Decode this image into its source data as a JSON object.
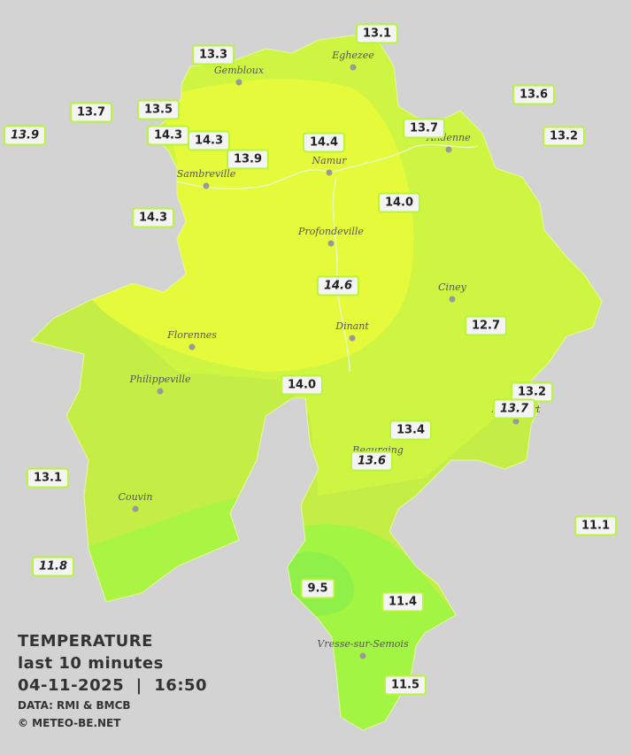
{
  "legend": {
    "title": "TEMPERATURE",
    "period": "last 10 minutes",
    "datetime": "04-11-2025  |  16:50",
    "source": "DATA: RMI & BMCB",
    "copyright": "© METEO-BE.NET"
  },
  "cities": [
    "Eghezee",
    "Gembloux",
    "Andenne",
    "Namur",
    "Sambreville",
    "Profondeville",
    "Ciney",
    "Dinant",
    "Florennes",
    "Philippeville",
    "Rochefort",
    "Beauraing",
    "Couvin",
    "Vresse-sur-Semois"
  ],
  "stations": [
    {
      "label": "13.1"
    },
    {
      "label": "13.3"
    },
    {
      "label": "13.6"
    },
    {
      "label": "13.7"
    },
    {
      "label": "13.5"
    },
    {
      "label": "13.9",
      "italic": true
    },
    {
      "label": "14.3"
    },
    {
      "label": "14.3"
    },
    {
      "label": "14.4"
    },
    {
      "label": "13.7"
    },
    {
      "label": "13.2"
    },
    {
      "label": "13.9"
    },
    {
      "label": "14.0"
    },
    {
      "label": "14.3"
    },
    {
      "label": "14.6",
      "italic": true
    },
    {
      "label": "12.7"
    },
    {
      "label": "14.0"
    },
    {
      "label": "13.2"
    },
    {
      "label": "13.7",
      "italic": true
    },
    {
      "label": "13.4"
    },
    {
      "label": "13.6",
      "italic": true
    },
    {
      "label": "13.1"
    },
    {
      "label": "11.1"
    },
    {
      "label": "11.8",
      "italic": true
    },
    {
      "label": "9.5"
    },
    {
      "label": "11.4"
    },
    {
      "label": "11.5"
    }
  ]
}
